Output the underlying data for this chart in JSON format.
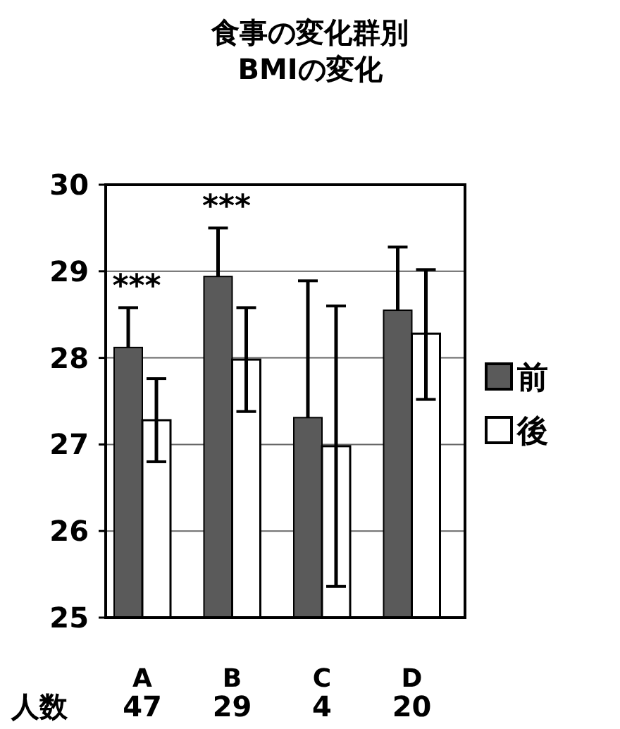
{
  "chart_data": {
    "type": "bar",
    "title": "食事の変化群別",
    "subtitle": "BMIの変化",
    "categories": [
      "A",
      "B",
      "C",
      "D"
    ],
    "series": [
      {
        "name": "前",
        "color": "#5a5a5a",
        "values": [
          28.12,
          28.94,
          27.31,
          28.55
        ],
        "errors": [
          [
            28.12,
            28.58
          ],
          [
            28.94,
            29.5
          ],
          [
            27.31,
            28.89
          ],
          [
            28.55,
            29.28
          ]
        ]
      },
      {
        "name": "後",
        "color": "#ffffff",
        "values": [
          27.28,
          27.98,
          26.98,
          28.28
        ],
        "errors": [
          [
            26.8,
            27.76
          ],
          [
            27.38,
            28.58
          ],
          [
            25.36,
            28.6
          ],
          [
            27.52,
            29.02
          ]
        ]
      }
    ],
    "ylim": [
      25,
      30
    ],
    "yticks": [
      25,
      26,
      27,
      28,
      29,
      30
    ],
    "grid": "y",
    "legend": "right",
    "annotations": [
      {
        "text": "***",
        "x": "A",
        "y": 28.58
      },
      {
        "text": "***",
        "x": "B",
        "y": 29.5
      },
      "人数",
      "47",
      "29",
      "4",
      "20"
    ]
  }
}
